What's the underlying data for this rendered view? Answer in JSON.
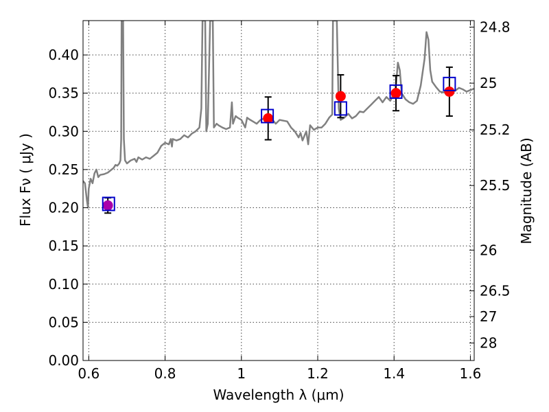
{
  "chart_data": {
    "type": "scatter",
    "title": "",
    "xlabel": "Wavelength  λ (μm)",
    "ylabel": "Flux  Fν  ( μJy )",
    "y2label": "Magnitude (AB)",
    "xlim": [
      0.585,
      1.61
    ],
    "ylim": [
      0.0,
      0.445
    ],
    "x_ticks": [
      0.6,
      0.8,
      1.0,
      1.2,
      1.4,
      1.6
    ],
    "x_tick_labels": [
      "0.6",
      "0.8",
      "1",
      "1.2",
      "1.4",
      "1.6"
    ],
    "y_ticks": [
      0.0,
      0.05,
      0.1,
      0.15,
      0.2,
      0.25,
      0.3,
      0.35,
      0.4
    ],
    "y_tick_labels": [
      "0.00",
      "0.05",
      "0.10",
      "0.15",
      "0.20",
      "0.25",
      "0.30",
      "0.35",
      "0.40"
    ],
    "y2_ticks": [
      {
        "label": "24.8",
        "flux": 0.4365
      },
      {
        "label": "25",
        "flux": 0.3631
      },
      {
        "label": "25.2",
        "flux": 0.302
      },
      {
        "label": "25.5",
        "flux": 0.2291
      },
      {
        "label": "26",
        "flux": 0.1445
      },
      {
        "label": "26.5",
        "flux": 0.0912
      },
      {
        "label": "27",
        "flux": 0.0575
      },
      {
        "label": "28",
        "flux": 0.0229
      }
    ],
    "grid": true,
    "colors": {
      "model": "#808080",
      "observed": "#ff0000",
      "synthetic": "#0000cc",
      "errorbar": "#000000",
      "first_point": "#aa00aa"
    },
    "series": [
      {
        "kind": "model-spectrum",
        "points": [
          [
            0.585,
            0.235
          ],
          [
            0.59,
            0.232
          ],
          [
            0.595,
            0.21
          ],
          [
            0.598,
            0.2
          ],
          [
            0.6,
            0.225
          ],
          [
            0.605,
            0.238
          ],
          [
            0.61,
            0.232
          ],
          [
            0.615,
            0.245
          ],
          [
            0.62,
            0.25
          ],
          [
            0.625,
            0.24
          ],
          [
            0.63,
            0.243
          ],
          [
            0.64,
            0.244
          ],
          [
            0.65,
            0.246
          ],
          [
            0.66,
            0.25
          ],
          [
            0.665,
            0.252
          ],
          [
            0.67,
            0.256
          ],
          [
            0.675,
            0.255
          ],
          [
            0.68,
            0.258
          ],
          [
            0.683,
            0.262
          ],
          [
            0.685,
            0.29
          ],
          [
            0.686,
            0.445
          ],
          [
            0.69,
            0.445
          ],
          [
            0.692,
            0.29
          ],
          [
            0.695,
            0.262
          ],
          [
            0.7,
            0.258
          ],
          [
            0.71,
            0.262
          ],
          [
            0.72,
            0.264
          ],
          [
            0.725,
            0.26
          ],
          [
            0.73,
            0.266
          ],
          [
            0.74,
            0.263
          ],
          [
            0.75,
            0.266
          ],
          [
            0.76,
            0.264
          ],
          [
            0.77,
            0.268
          ],
          [
            0.78,
            0.272
          ],
          [
            0.79,
            0.281
          ],
          [
            0.8,
            0.285
          ],
          [
            0.81,
            0.283
          ],
          [
            0.815,
            0.29
          ],
          [
            0.818,
            0.28
          ],
          [
            0.82,
            0.29
          ],
          [
            0.83,
            0.288
          ],
          [
            0.84,
            0.29
          ],
          [
            0.85,
            0.295
          ],
          [
            0.86,
            0.292
          ],
          [
            0.87,
            0.297
          ],
          [
            0.88,
            0.3
          ],
          [
            0.89,
            0.305
          ],
          [
            0.895,
            0.33
          ],
          [
            0.898,
            0.445
          ],
          [
            0.905,
            0.445
          ],
          [
            0.908,
            0.3
          ],
          [
            0.912,
            0.31
          ],
          [
            0.918,
            0.445
          ],
          [
            0.925,
            0.445
          ],
          [
            0.928,
            0.305
          ],
          [
            0.935,
            0.31
          ],
          [
            0.94,
            0.308
          ],
          [
            0.95,
            0.305
          ],
          [
            0.96,
            0.303
          ],
          [
            0.97,
            0.305
          ],
          [
            0.975,
            0.338
          ],
          [
            0.978,
            0.31
          ],
          [
            0.985,
            0.32
          ],
          [
            0.99,
            0.318
          ],
          [
            1.0,
            0.315
          ],
          [
            1.01,
            0.305
          ],
          [
            1.015,
            0.318
          ],
          [
            1.02,
            0.316
          ],
          [
            1.03,
            0.313
          ],
          [
            1.04,
            0.31
          ],
          [
            1.05,
            0.315
          ],
          [
            1.06,
            0.317
          ],
          [
            1.07,
            0.32
          ],
          [
            1.08,
            0.316
          ],
          [
            1.09,
            0.31
          ],
          [
            1.1,
            0.315
          ],
          [
            1.12,
            0.313
          ],
          [
            1.13,
            0.305
          ],
          [
            1.14,
            0.3
          ],
          [
            1.15,
            0.292
          ],
          [
            1.155,
            0.298
          ],
          [
            1.16,
            0.288
          ],
          [
            1.17,
            0.3
          ],
          [
            1.175,
            0.283
          ],
          [
            1.18,
            0.308
          ],
          [
            1.19,
            0.302
          ],
          [
            1.2,
            0.305
          ],
          [
            1.21,
            0.305
          ],
          [
            1.22,
            0.31
          ],
          [
            1.23,
            0.318
          ],
          [
            1.238,
            0.322
          ],
          [
            1.24,
            0.445
          ],
          [
            1.25,
            0.445
          ],
          [
            1.255,
            0.33
          ],
          [
            1.26,
            0.315
          ],
          [
            1.27,
            0.318
          ],
          [
            1.28,
            0.323
          ],
          [
            1.29,
            0.317
          ],
          [
            1.3,
            0.32
          ],
          [
            1.31,
            0.326
          ],
          [
            1.32,
            0.325
          ],
          [
            1.33,
            0.33
          ],
          [
            1.34,
            0.335
          ],
          [
            1.35,
            0.34
          ],
          [
            1.36,
            0.345
          ],
          [
            1.37,
            0.338
          ],
          [
            1.38,
            0.345
          ],
          [
            1.39,
            0.34
          ],
          [
            1.4,
            0.35
          ],
          [
            1.405,
            0.36
          ],
          [
            1.41,
            0.39
          ],
          [
            1.415,
            0.38
          ],
          [
            1.42,
            0.35
          ],
          [
            1.43,
            0.342
          ],
          [
            1.44,
            0.338
          ],
          [
            1.45,
            0.336
          ],
          [
            1.46,
            0.34
          ],
          [
            1.47,
            0.36
          ],
          [
            1.48,
            0.395
          ],
          [
            1.485,
            0.43
          ],
          [
            1.49,
            0.42
          ],
          [
            1.495,
            0.38
          ],
          [
            1.5,
            0.365
          ],
          [
            1.51,
            0.358
          ],
          [
            1.52,
            0.352
          ],
          [
            1.53,
            0.351
          ],
          [
            1.54,
            0.353
          ],
          [
            1.55,
            0.352
          ],
          [
            1.56,
            0.353
          ],
          [
            1.57,
            0.357
          ],
          [
            1.58,
            0.355
          ],
          [
            1.59,
            0.352
          ],
          [
            1.6,
            0.354
          ],
          [
            1.61,
            0.356
          ]
        ]
      },
      {
        "kind": "observed-photometry",
        "x": [
          0.65,
          1.07,
          1.26,
          1.405,
          1.545
        ],
        "y": [
          0.203,
          0.317,
          0.346,
          0.35,
          0.352
        ],
        "yerr": [
          0.01,
          0.028,
          0.028,
          0.023,
          0.032
        ]
      },
      {
        "kind": "synthetic-photometry",
        "x": [
          0.652,
          1.068,
          1.26,
          1.405,
          1.545
        ],
        "y": [
          0.205,
          0.32,
          0.33,
          0.352,
          0.362
        ]
      }
    ]
  }
}
